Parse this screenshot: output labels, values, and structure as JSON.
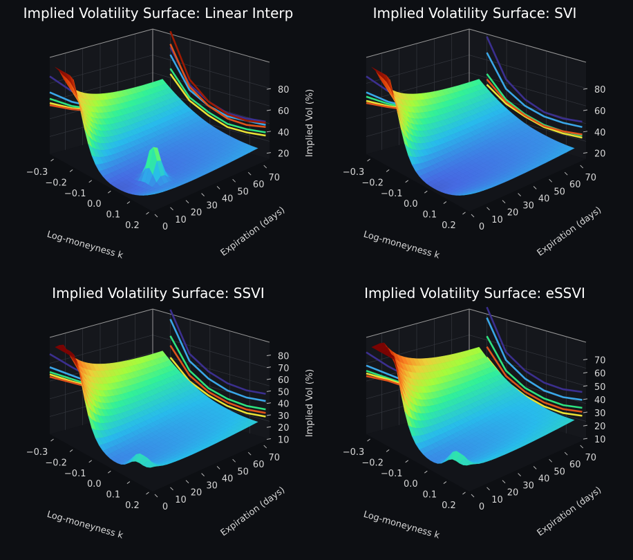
{
  "chart_data": [
    {
      "type": "surface3d",
      "title": "Implied Volatility Surface: Linear Interp",
      "xlabel": "Log-moneyness  k",
      "ylabel": "Expiration (days)",
      "zlabel": "Implied Vol (%)",
      "x_ticks": [
        "−0.3",
        "−0.2",
        "−0.1",
        "0.0",
        "0.1",
        "0.2"
      ],
      "y_ticks": [
        "0",
        "10",
        "20",
        "30",
        "40",
        "50",
        "60",
        "70"
      ],
      "z_ticks": [
        "20",
        "40",
        "60",
        "80"
      ],
      "zlim": [
        12,
        95
      ],
      "surface_min_vol": 14,
      "wall_curves_k": [
        {
          "color": "#3b2f8f",
          "values": [
            65,
            40,
            34,
            33,
            38,
            45
          ]
        },
        {
          "color": "#3aa7e8",
          "values": [
            58,
            35,
            30,
            30,
            36,
            42
          ]
        },
        {
          "color": "#2ee37f",
          "values": [
            45,
            28,
            24,
            23,
            28,
            35
          ]
        },
        {
          "color": "#e9e136",
          "values": [
            40,
            25,
            21,
            20,
            25,
            32
          ]
        },
        {
          "color": "#e0531b",
          "values": [
            68,
            38,
            30,
            28,
            32,
            40
          ]
        },
        {
          "color": "#9e1a02",
          "values": [
            80,
            45,
            34,
            32,
            36,
            44
          ]
        }
      ],
      "wall_curves_t": [
        {
          "color": "#3b2f8f",
          "values": [
            85,
            62,
            44,
            35,
            30,
            33
          ]
        },
        {
          "color": "#3aa7e8",
          "values": [
            70,
            52,
            38,
            30,
            26,
            27
          ]
        },
        {
          "color": "#2ee37f",
          "values": [
            64,
            48,
            36,
            29,
            24,
            22
          ]
        },
        {
          "color": "#e9e136",
          "values": [
            60,
            46,
            35,
            28,
            22,
            18
          ]
        },
        {
          "color": "#e0531b",
          "values": [
            58,
            45,
            34,
            27,
            20,
            17
          ]
        }
      ]
    },
    {
      "type": "surface3d",
      "title": "Implied Volatility Surface: SVI",
      "xlabel": "Log-moneyness  k",
      "ylabel": "Expiration (days)",
      "zlabel": "",
      "x_ticks": [
        "−0.3",
        "−0.2",
        "−0.1",
        "0.0",
        "0.1",
        "0.2"
      ],
      "y_ticks": [
        "0",
        "10",
        "20",
        "30",
        "40",
        "50",
        "60",
        "70"
      ],
      "z_ticks": [
        "20",
        "40",
        "60",
        "80"
      ],
      "zlim": [
        12,
        95
      ],
      "surface_min_vol": 14,
      "wall_curves_k": [
        {
          "color": "#3b2f8f",
          "values": [
            75,
            45,
            36,
            34,
            38,
            45
          ]
        },
        {
          "color": "#3aa7e8",
          "values": [
            60,
            36,
            30,
            30,
            34,
            40
          ]
        },
        {
          "color": "#2ee37f",
          "values": [
            40,
            26,
            22,
            22,
            26,
            32
          ]
        },
        {
          "color": "#e9e136",
          "values": [
            30,
            22,
            20,
            20,
            24,
            30
          ]
        },
        {
          "color": "#e0531b",
          "values": [
            35,
            24,
            21,
            21,
            26,
            33
          ]
        }
      ],
      "wall_curves_t": [
        {
          "color": "#3b2f8f",
          "values": [
            85,
            62,
            44,
            34,
            28,
            26
          ]
        },
        {
          "color": "#3aa7e8",
          "values": [
            70,
            52,
            38,
            30,
            25,
            24
          ]
        },
        {
          "color": "#2ee37f",
          "values": [
            66,
            50,
            37,
            29,
            24,
            22
          ]
        },
        {
          "color": "#e9e136",
          "values": [
            62,
            48,
            36,
            28,
            23,
            20
          ]
        },
        {
          "color": "#e0531b",
          "values": [
            60,
            47,
            35,
            27,
            22,
            19
          ]
        }
      ]
    },
    {
      "type": "surface3d",
      "title": "Implied Volatility Surface: SSVI",
      "xlabel": "Log-moneyness  k",
      "ylabel": "Expiration (days)",
      "zlabel": "Implied Vol (%)",
      "x_ticks": [
        "−0.3",
        "−0.2",
        "−0.1",
        "0.0",
        "0.1",
        "0.2"
      ],
      "y_ticks": [
        "0",
        "10",
        "20",
        "30",
        "40",
        "50",
        "60",
        "70"
      ],
      "z_ticks": [
        "10",
        "20",
        "30",
        "40",
        "50",
        "60",
        "70",
        "80"
      ],
      "zlim": [
        8,
        82
      ],
      "surface_min_vol": 10,
      "wall_curves_k": [
        {
          "color": "#3b2f8f",
          "values": [
            70,
            42,
            36,
            35,
            38,
            44
          ]
        },
        {
          "color": "#3aa7e8",
          "values": [
            62,
            36,
            30,
            29,
            32,
            38
          ]
        },
        {
          "color": "#2ee37f",
          "values": [
            48,
            28,
            22,
            22,
            25,
            31
          ]
        },
        {
          "color": "#e0531b",
          "values": [
            40,
            24,
            19,
            19,
            22,
            28
          ]
        },
        {
          "color": "#e9e136",
          "values": [
            30,
            19,
            16,
            16,
            19,
            25
          ]
        }
      ],
      "wall_curves_t": [
        {
          "color": "#3b2f8f",
          "values": [
            75,
            56,
            38,
            25,
            22,
            24
          ]
        },
        {
          "color": "#3aa7e8",
          "values": [
            64,
            49,
            34,
            22,
            19,
            18
          ]
        },
        {
          "color": "#2ee37f",
          "values": [
            60,
            46,
            32,
            21,
            17,
            16
          ]
        },
        {
          "color": "#e9e136",
          "values": [
            58,
            44,
            31,
            20,
            15,
            14
          ]
        },
        {
          "color": "#e0531b",
          "values": [
            56,
            43,
            30,
            19,
            14,
            13
          ]
        }
      ]
    },
    {
      "type": "surface3d",
      "title": "Implied Volatility Surface: eSSVI",
      "xlabel": "Log-moneyness  k",
      "ylabel": "Expiration (days)",
      "zlabel": "",
      "x_ticks": [
        "−0.3",
        "−0.2",
        "−0.1",
        "0.0",
        "0.1",
        "0.2"
      ],
      "y_ticks": [
        "0",
        "10",
        "20",
        "30",
        "40",
        "50",
        "60",
        "70"
      ],
      "z_ticks": [
        "10",
        "20",
        "30",
        "40",
        "50",
        "60",
        "70"
      ],
      "zlim": [
        8,
        75
      ],
      "surface_min_vol": 10,
      "wall_curves_k": [
        {
          "color": "#3b2f8f",
          "values": [
            66,
            40,
            34,
            33,
            36,
            42
          ]
        },
        {
          "color": "#3aa7e8",
          "values": [
            58,
            34,
            28,
            27,
            30,
            36
          ]
        },
        {
          "color": "#2ee37f",
          "values": [
            44,
            26,
            21,
            21,
            24,
            30
          ]
        },
        {
          "color": "#e0531b",
          "values": [
            36,
            22,
            18,
            18,
            21,
            27
          ]
        },
        {
          "color": "#e9e136",
          "values": [
            28,
            18,
            15,
            15,
            18,
            24
          ]
        }
      ],
      "wall_curves_t": [
        {
          "color": "#3b2f8f",
          "values": [
            70,
            52,
            36,
            24,
            21,
            22
          ]
        },
        {
          "color": "#3aa7e8",
          "values": [
            60,
            46,
            32,
            21,
            18,
            17
          ]
        },
        {
          "color": "#2ee37f",
          "values": [
            56,
            43,
            30,
            20,
            16,
            15
          ]
        },
        {
          "color": "#e9e136",
          "values": [
            54,
            42,
            29,
            19,
            15,
            14
          ]
        },
        {
          "color": "#e0531b",
          "values": [
            52,
            41,
            28,
            18,
            14,
            13
          ]
        }
      ]
    }
  ]
}
